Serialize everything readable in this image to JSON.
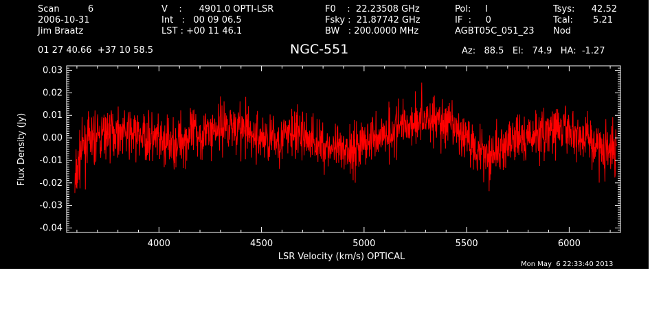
{
  "header": {
    "col1": [
      "Scan          6",
      "2006-10-31",
      "Jim Braatz"
    ],
    "col2": [
      "V    :      4901.0 OPTI-LSR",
      "Int   :   00 09 06.5",
      "LST : +00 11 46.1"
    ],
    "col3": [
      "F0    :  22.23508 GHz",
      "Fsky :  21.87742 GHz",
      "BW   : 200.0000 MHz"
    ],
    "col4": [
      "Pol:     I",
      "IF  :     0",
      "AGBT05C_051_23"
    ],
    "col5": [
      "Tsys:",
      "Tcal:",
      "Nod"
    ],
    "col5_values": [
      "42.52",
      "5.21",
      ""
    ],
    "coordinates": "01 27 40.66  +37 10 58.5",
    "source": "NGC-551",
    "az_el_ha": "Az:   88.5   El:   74.9   HA:  -1.27",
    "timestamp": "Mon May  6 22:33:40 2013"
  },
  "colors": {
    "background": "#000000",
    "axes": "#ffffff",
    "series": "#ff0000"
  },
  "chart_data": {
    "type": "line",
    "xlabel": "LSR Velocity (km/s) OPTICAL",
    "ylabel": "Flux Density (Jy)",
    "xlim": [
      3550,
      6250
    ],
    "ylim": [
      -0.042,
      0.032
    ],
    "xticks": [
      4000,
      4500,
      5000,
      5500,
      6000
    ],
    "yticks": [
      -0.04,
      -0.03,
      -0.02,
      -0.01,
      0.0,
      0.01,
      0.02,
      0.03
    ],
    "ytick_labels": [
      "-0.04",
      "-0.03",
      "-0.02",
      "-0.01",
      "0.00",
      "0.01",
      "0.02",
      "0.03"
    ],
    "series": [
      {
        "color": "#ff0000",
        "x": [
          3590,
          3600,
          3620,
          3650,
          3700,
          3750,
          3800,
          3850,
          3900,
          3950,
          4000,
          4050,
          4100,
          4150,
          4200,
          4250,
          4300,
          4350,
          4400,
          4450,
          4500,
          4550,
          4600,
          4650,
          4700,
          4750,
          4800,
          4850,
          4900,
          4950,
          5000,
          5050,
          5100,
          5150,
          5200,
          5250,
          5300,
          5350,
          5400,
          5450,
          5500,
          5550,
          5600,
          5650,
          5700,
          5750,
          5800,
          5850,
          5900,
          5950,
          6000,
          6050,
          6100,
          6150,
          6200,
          6230
        ],
        "y": [
          -0.022,
          -0.015,
          -0.006,
          -0.002,
          0.0,
          0.002,
          0.003,
          0.002,
          0.001,
          0.0,
          -0.002,
          -0.003,
          -0.001,
          0.001,
          0.002,
          0.003,
          0.005,
          0.006,
          0.004,
          0.001,
          0.0,
          -0.001,
          0.0,
          0.002,
          0.001,
          -0.001,
          -0.003,
          -0.005,
          -0.007,
          -0.004,
          -0.002,
          0.0,
          0.002,
          0.004,
          0.006,
          0.008,
          0.009,
          0.008,
          0.006,
          0.003,
          0.0,
          -0.004,
          -0.007,
          -0.006,
          -0.003,
          -0.001,
          0.0,
          0.002,
          0.003,
          0.004,
          0.003,
          0.001,
          -0.001,
          -0.004,
          -0.007,
          -0.003
        ],
        "noise_rms": 0.0055
      }
    ]
  }
}
